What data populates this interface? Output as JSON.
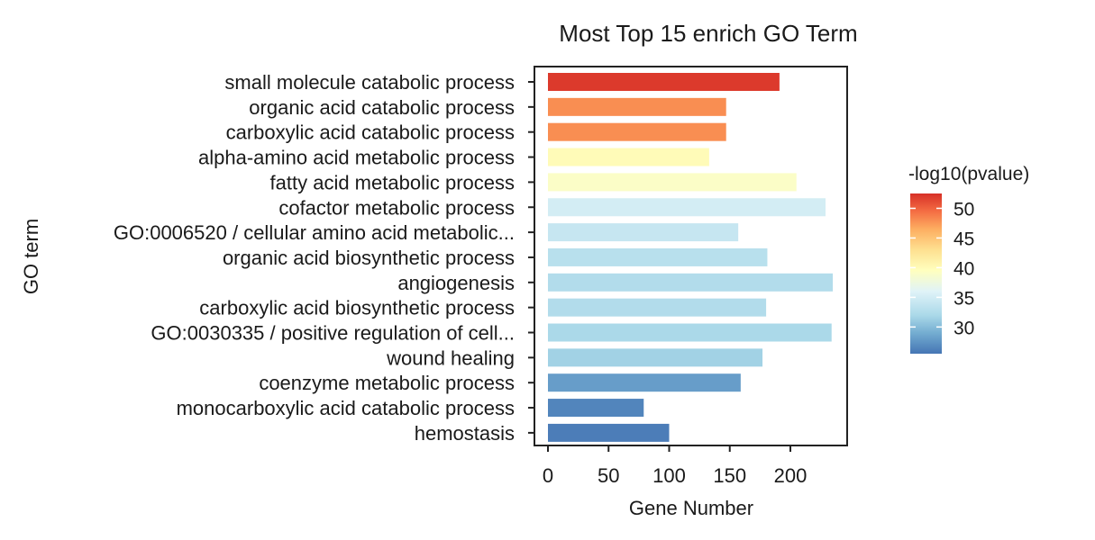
{
  "chart_data": {
    "type": "bar",
    "orientation": "horizontal",
    "title": "Most Top 15 enrich GO Term",
    "xlabel": "Gene Number",
    "ylabel": "GO term",
    "xlim": [
      0,
      240
    ],
    "xticks": [
      0,
      50,
      100,
      150,
      200
    ],
    "categories": [
      "small molecule catabolic process",
      "organic acid catabolic process",
      "carboxylic acid catabolic process",
      "alpha-amino acid metabolic process",
      "fatty acid metabolic process",
      "cofactor metabolic process",
      "GO:0006520 / cellular amino acid metabolic...",
      "organic acid biosynthetic process",
      "angiogenesis",
      "carboxylic acid biosynthetic process",
      "GO:0030335 / positive regulation of cell...",
      "wound healing",
      "coenzyme metabolic process",
      "monocarboxylic acid catabolic process",
      "hemostasis"
    ],
    "values": [
      191,
      147,
      147,
      133,
      205,
      229,
      157,
      181,
      235,
      180,
      234,
      177,
      159,
      79,
      100
    ],
    "color_values": [
      52,
      48,
      48,
      40,
      39,
      35,
      34,
      33,
      32.5,
      32.5,
      32,
      31.5,
      28,
      26.5,
      26
    ],
    "legend": {
      "title": "-log10(pvalue)",
      "ticks": [
        50,
        45,
        40,
        35,
        30
      ],
      "range": [
        25.5,
        52.5
      ],
      "placement": "right"
    },
    "colormap": [
      {
        "v": 25.5,
        "c": "#4575b4"
      },
      {
        "v": 29,
        "c": "#74add1"
      },
      {
        "v": 32,
        "c": "#abd9e9"
      },
      {
        "v": 36,
        "c": "#e0f3f8"
      },
      {
        "v": 39.5,
        "c": "#ffffbf"
      },
      {
        "v": 43,
        "c": "#fee090"
      },
      {
        "v": 46.5,
        "c": "#fdae61"
      },
      {
        "v": 49.5,
        "c": "#f46d43"
      },
      {
        "v": 52.5,
        "c": "#d73027"
      }
    ],
    "grid": false
  }
}
